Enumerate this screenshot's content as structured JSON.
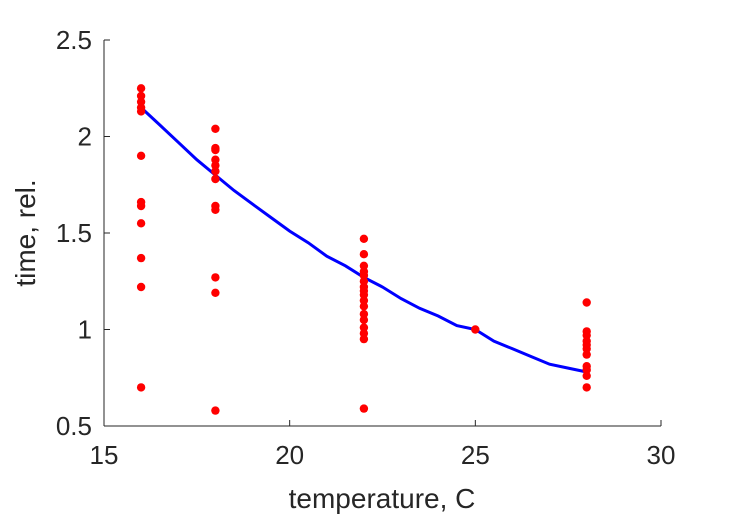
{
  "chart_data": {
    "type": "scatter",
    "title": "",
    "xlabel": "temperature, C",
    "ylabel": "time, rel.",
    "xlim": [
      15,
      30
    ],
    "ylim": [
      0.5,
      2.5
    ],
    "xticks": [
      15,
      20,
      25,
      30
    ],
    "yticks": [
      0.5,
      1,
      1.5,
      2,
      2.5
    ],
    "xtick_labels": [
      "15",
      "20",
      "25",
      "30"
    ],
    "ytick_labels": [
      "0.5",
      "1",
      "1.5",
      "2",
      "2.5"
    ],
    "grid": false,
    "series": [
      {
        "type": "scatter",
        "color": "#ff0000",
        "points": [
          [
            16,
            2.25
          ],
          [
            16,
            2.21
          ],
          [
            16,
            2.18
          ],
          [
            16,
            2.15
          ],
          [
            16,
            2.13
          ],
          [
            16,
            1.9
          ],
          [
            16,
            1.66
          ],
          [
            16,
            1.64
          ],
          [
            16,
            1.55
          ],
          [
            16,
            1.37
          ],
          [
            16,
            1.22
          ],
          [
            16,
            0.7
          ],
          [
            18,
            2.04
          ],
          [
            18,
            1.94
          ],
          [
            18,
            1.93
          ],
          [
            18,
            1.88
          ],
          [
            18,
            1.85
          ],
          [
            18,
            1.82
          ],
          [
            18,
            1.78
          ],
          [
            18,
            1.64
          ],
          [
            18,
            1.62
          ],
          [
            18,
            1.27
          ],
          [
            18,
            1.19
          ],
          [
            18,
            0.58
          ],
          [
            22,
            1.47
          ],
          [
            22,
            1.39
          ],
          [
            22,
            1.33
          ],
          [
            22,
            1.3
          ],
          [
            22,
            1.28
          ],
          [
            22,
            1.25
          ],
          [
            22,
            1.22
          ],
          [
            22,
            1.2
          ],
          [
            22,
            1.18
          ],
          [
            22,
            1.15
          ],
          [
            22,
            1.12
          ],
          [
            22,
            1.08
          ],
          [
            22,
            1.05
          ],
          [
            22,
            1.01
          ],
          [
            22,
            0.98
          ],
          [
            22,
            0.95
          ],
          [
            22,
            0.59
          ],
          [
            25,
            1.0
          ],
          [
            28,
            1.14
          ],
          [
            28,
            0.99
          ],
          [
            28,
            0.97
          ],
          [
            28,
            0.94
          ],
          [
            28,
            0.92
          ],
          [
            28,
            0.9
          ],
          [
            28,
            0.87
          ],
          [
            28,
            0.81
          ],
          [
            28,
            0.79
          ],
          [
            28,
            0.76
          ],
          [
            28,
            0.7
          ]
        ]
      },
      {
        "type": "line",
        "color": "#0000ff",
        "x": [
          16,
          16.5,
          17,
          17.5,
          18,
          18.5,
          19,
          19.5,
          20,
          20.5,
          21,
          21.5,
          22,
          22.5,
          23,
          23.5,
          24,
          24.5,
          25,
          25.5,
          26,
          26.5,
          27,
          27.5,
          28
        ],
        "y": [
          2.15,
          2.06,
          1.97,
          1.88,
          1.8,
          1.72,
          1.65,
          1.58,
          1.51,
          1.45,
          1.38,
          1.33,
          1.27,
          1.22,
          1.16,
          1.11,
          1.07,
          1.02,
          1.0,
          0.94,
          0.9,
          0.86,
          0.82,
          0.8,
          0.78
        ]
      }
    ]
  }
}
